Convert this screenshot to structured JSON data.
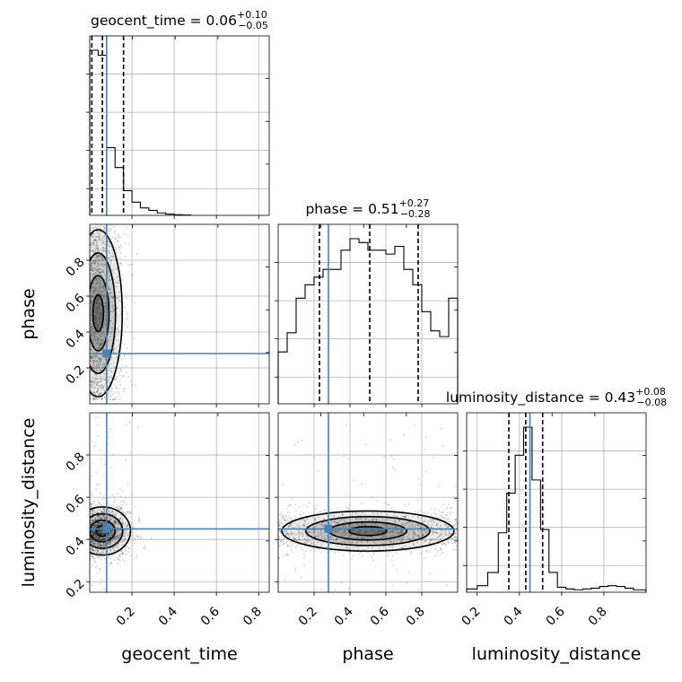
{
  "chart_data": {
    "type": "corner",
    "parameters": [
      "geocent_time",
      "phase",
      "luminosity_distance"
    ],
    "axis_ranges": {
      "geocent_time": [
        0.0,
        0.85
      ],
      "phase": [
        0.0,
        1.0
      ],
      "luminosity_distance": [
        0.15,
        1.0
      ]
    },
    "truth": {
      "geocent_time": 0.08,
      "phase": 0.28,
      "luminosity_distance": 0.45
    },
    "truth_color": "#4682b4",
    "grid": true,
    "titles": {
      "geocent_time": {
        "name": "geocent_time",
        "median": "0.06",
        "plus": "+0.10",
        "minus": "−0.05"
      },
      "phase": {
        "name": "phase",
        "median": "0.51",
        "plus": "+0.27",
        "minus": "−0.28"
      },
      "luminosity_distance": {
        "name": "luminosity_distance",
        "median": "0.43",
        "plus": "+0.08",
        "minus": "−0.08"
      }
    },
    "quantiles": {
      "geocent_time": [
        0.01,
        0.06,
        0.16
      ],
      "phase": [
        0.23,
        0.51,
        0.78
      ],
      "luminosity_distance": [
        0.35,
        0.43,
        0.51
      ]
    },
    "histograms": {
      "geocent_time": {
        "bins": [
          0.0,
          0.04,
          0.08,
          0.12,
          0.16,
          0.2,
          0.24,
          0.28,
          0.32,
          0.36,
          0.4,
          0.44,
          0.48
        ],
        "counts": [
          1.0,
          0.97,
          0.41,
          0.29,
          0.15,
          0.08,
          0.045,
          0.03,
          0.015,
          0.008,
          0.004,
          0.002
        ]
      },
      "phase": {
        "bins": [
          0.0,
          0.05,
          0.1,
          0.15,
          0.2,
          0.25,
          0.3,
          0.35,
          0.4,
          0.45,
          0.5,
          0.55,
          0.6,
          0.65,
          0.7,
          0.75,
          0.8,
          0.85,
          0.9,
          0.95,
          1.0
        ],
        "counts": [
          0.27,
          0.37,
          0.55,
          0.62,
          0.66,
          0.7,
          0.7,
          0.8,
          0.86,
          0.84,
          0.8,
          0.8,
          0.78,
          0.82,
          0.7,
          0.62,
          0.48,
          0.38,
          0.35,
          0.55
        ]
      },
      "luminosity_distance": {
        "bins": [
          0.15,
          0.2,
          0.25,
          0.3,
          0.34,
          0.38,
          0.42,
          0.46,
          0.5,
          0.54,
          0.58,
          0.62,
          0.66,
          0.7,
          0.74,
          0.78,
          0.82,
          0.86,
          0.9,
          0.94,
          1.0
        ],
        "counts": [
          0.02,
          0.04,
          0.12,
          0.36,
          0.6,
          0.83,
          1.0,
          0.68,
          0.38,
          0.12,
          0.03,
          0.02,
          0.015,
          0.02,
          0.025,
          0.035,
          0.04,
          0.035,
          0.025,
          0.015
        ]
      }
    },
    "scatter_clusters": {
      "geocent_time-phase": {
        "x_mean": 0.04,
        "x_sd": 0.06,
        "y_min": 0.02,
        "y_max": 0.99
      },
      "geocent_time-luminosity_distance": {
        "x_mean": 0.06,
        "x_sd": 0.07,
        "y_mean": 0.44,
        "y_sd": 0.06
      },
      "phase-luminosity_distance": {
        "x_min": 0.0,
        "x_max": 1.0,
        "y_mean": 0.44,
        "y_sd": 0.05
      }
    },
    "tick_labels": {
      "geocent_time": [
        "0.2",
        "0.4",
        "0.6",
        "0.8"
      ],
      "phase": [
        "0.2",
        "0.4",
        "0.6",
        "0.8"
      ],
      "luminosity_distance": [
        "0.2",
        "0.4",
        "0.6",
        "0.8"
      ]
    },
    "tick_values": {
      "geocent_time": [
        0.2,
        0.4,
        0.6,
        0.8
      ],
      "phase": [
        0.2,
        0.4,
        0.6,
        0.8
      ],
      "luminosity_distance": [
        0.2,
        0.4,
        0.6,
        0.8
      ]
    },
    "xlabels": [
      "geocent_time",
      "phase",
      "luminosity_distance"
    ],
    "ylabels": [
      "phase",
      "luminosity_distance"
    ]
  }
}
